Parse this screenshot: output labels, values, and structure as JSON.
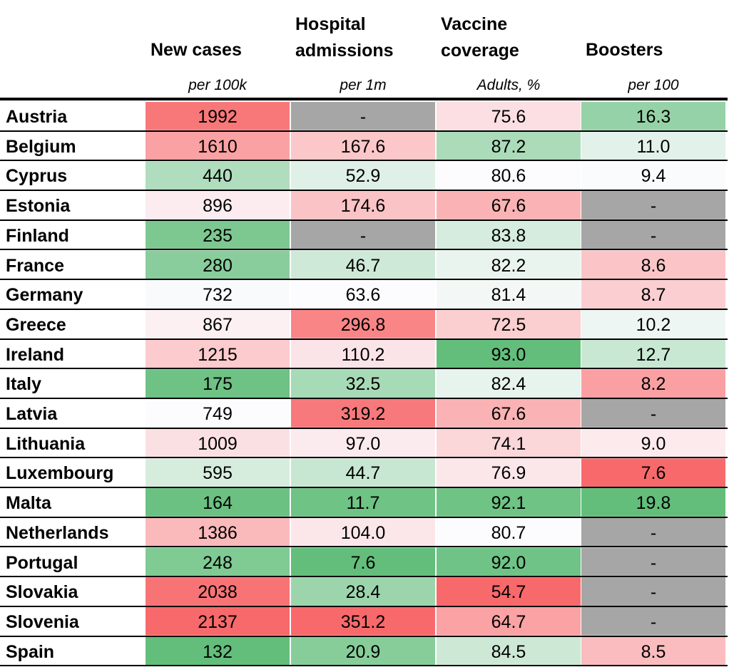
{
  "chart_data": {
    "type": "table",
    "columns": [
      {
        "key": "new_cases",
        "header": [
          "New cases"
        ],
        "unit": "per 100k"
      },
      {
        "key": "hospital_admissions",
        "header": [
          "Hospital",
          "admissions"
        ],
        "unit": "per 1m"
      },
      {
        "key": "vaccine_coverage",
        "header": [
          "Vaccine",
          "coverage"
        ],
        "unit": "Adults, %"
      },
      {
        "key": "boosters",
        "header": [
          "Boosters"
        ],
        "unit": "per 100"
      }
    ],
    "rows": [
      {
        "country": "Austria",
        "values": [
          "1992",
          "-",
          "75.6",
          "16.3"
        ]
      },
      {
        "country": "Belgium",
        "values": [
          "1610",
          "167.6",
          "87.2",
          "11.0"
        ]
      },
      {
        "country": "Cyprus",
        "values": [
          "440",
          "52.9",
          "80.6",
          "9.4"
        ]
      },
      {
        "country": "Estonia",
        "values": [
          "896",
          "174.6",
          "67.6",
          "-"
        ]
      },
      {
        "country": "Finland",
        "values": [
          "235",
          "-",
          "83.8",
          "-"
        ]
      },
      {
        "country": "France",
        "values": [
          "280",
          "46.7",
          "82.2",
          "8.6"
        ]
      },
      {
        "country": "Germany",
        "values": [
          "732",
          "63.6",
          "81.4",
          "8.7"
        ]
      },
      {
        "country": "Greece",
        "values": [
          "867",
          "296.8",
          "72.5",
          "10.2"
        ]
      },
      {
        "country": "Ireland",
        "values": [
          "1215",
          "110.2",
          "93.0",
          "12.7"
        ]
      },
      {
        "country": "Italy",
        "values": [
          "175",
          "32.5",
          "82.4",
          "8.2"
        ]
      },
      {
        "country": "Latvia",
        "values": [
          "749",
          "319.2",
          "67.6",
          "-"
        ]
      },
      {
        "country": "Lithuania",
        "values": [
          "1009",
          "97.0",
          "74.1",
          "9.0"
        ]
      },
      {
        "country": "Luxembourg",
        "values": [
          "595",
          "44.7",
          "76.9",
          "7.6"
        ]
      },
      {
        "country": "Malta",
        "values": [
          "164",
          "11.7",
          "92.1",
          "19.8"
        ]
      },
      {
        "country": "Netherlands",
        "values": [
          "1386",
          "104.0",
          "80.7",
          "-"
        ]
      },
      {
        "country": "Portugal",
        "values": [
          "248",
          "7.6",
          "92.0",
          "-"
        ]
      },
      {
        "country": "Slovakia",
        "values": [
          "2038",
          "28.4",
          "54.7",
          "-"
        ]
      },
      {
        "country": "Slovenia",
        "values": [
          "2137",
          "351.2",
          "64.7",
          "-"
        ]
      },
      {
        "country": "Spain",
        "values": [
          "132",
          "20.9",
          "84.5",
          "8.5"
        ]
      }
    ],
    "color_scale": {
      "low_color": "#63be7b",
      "mid_color": "#fcfcff",
      "high_color": "#f8696b",
      "missing_color": "#a6a6a6",
      "higher_is_better": [
        false,
        false,
        true,
        true
      ]
    },
    "grid": true,
    "legend": "none"
  }
}
